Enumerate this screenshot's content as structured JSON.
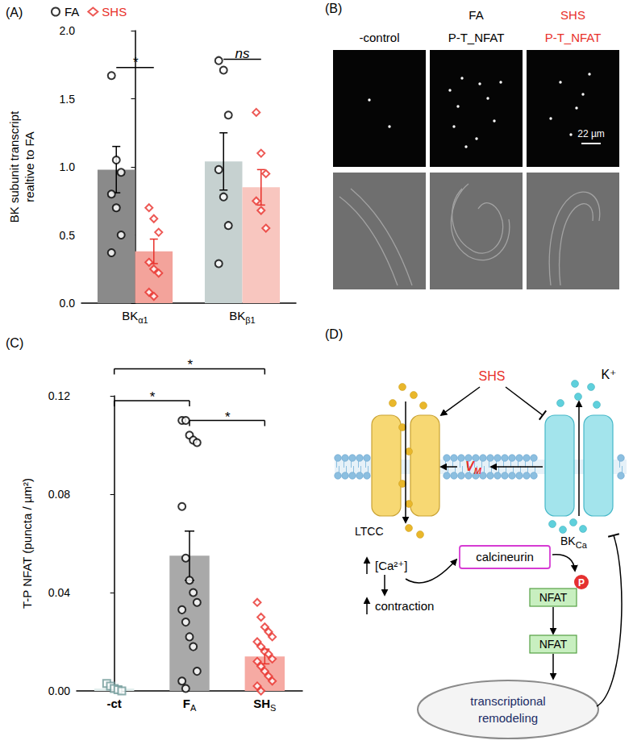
{
  "chart_data": [
    {
      "type": "bar",
      "title": "(A)",
      "y_label": "BK subunit transcript\nrealtive to FA",
      "categories": [
        "BKα1",
        "BKβ1"
      ],
      "series": [
        {
          "name": "FA",
          "color": "#000000",
          "colors": [
            "#8a8a8a",
            "#c6d1d0"
          ],
          "marker": "circle",
          "values": [
            0.98,
            1.04
          ],
          "errors": [
            0.17,
            0.21
          ],
          "points": [
            [
              1.67,
              1.05,
              0.96,
              0.8,
              0.7,
              0.5,
              0.37
            ],
            [
              1.78,
              1.71,
              1.38,
              0.98,
              0.78,
              0.57,
              0.29
            ]
          ]
        },
        {
          "name": "SHS",
          "color": "#e8302a",
          "colors": [
            "#f3a39b",
            "#f8c6bf"
          ],
          "marker": "diamond",
          "values": [
            0.38,
            0.85
          ],
          "errors": [
            0.09,
            0.13
          ],
          "points": [
            [
              0.7,
              0.62,
              0.52,
              0.3,
              0.25,
              0.22,
              0.08,
              0.05
            ],
            [
              1.4,
              1.1,
              0.95,
              0.75,
              0.68,
              0.55
            ]
          ]
        }
      ],
      "ylim": [
        0,
        2
      ],
      "yticks": [
        {
          "value": 0,
          "label": "0.0"
        },
        0.5,
        {
          "value": 1,
          "label": "1.0"
        },
        1.5,
        {
          "value": 2,
          "label": "2.0"
        }
      ],
      "grid": false,
      "legend": "top-left",
      "annotations": [
        {
          "text": "*",
          "category": "BKα1",
          "y": 1.73
        },
        {
          "text": "ns",
          "category": "BKβ1",
          "y": 1.79
        }
      ]
    },
    {
      "type": "bar",
      "title": "(C)",
      "y_label": "T-P NFAT (puncta / µm²)",
      "categories": [
        "-ct",
        "FA",
        "SHS"
      ],
      "series": [
        {
          "color": "#6f9a98",
          "colors": [
            "#e2eeed",
            "#e2eeed",
            "#e2eeed"
          ],
          "marker": "square",
          "values": [
            0.001,
            null,
            null
          ],
          "errors": [
            0.0005,
            null,
            null
          ],
          "points": [
            [
              0.003,
              0.002,
              0.001,
              0.0005,
              0
            ],
            [],
            []
          ]
        },
        {
          "color": "#000000",
          "colors": [
            "#a9a9a9",
            "#a9a9a9",
            "#a9a9a9"
          ],
          "marker": "circle",
          "values": [
            null,
            0.055,
            null
          ],
          "errors": [
            null,
            0.01,
            null
          ],
          "points": [
            [],
            [
              0.11,
              0.11,
              0.104,
              0.102,
              0.101,
              0.075,
              0.054,
              0.045,
              0.04,
              0.036,
              0.033,
              0.028,
              0.022,
              0.018,
              0.008,
              0.004,
              0.001
            ],
            []
          ]
        },
        {
          "color": "#e8302a",
          "colors": [
            "#f6aaa3",
            "#f6aaa3",
            "#f6aaa3"
          ],
          "marker": "diamond",
          "values": [
            null,
            null,
            0.014
          ],
          "errors": [
            null,
            null,
            0.003
          ],
          "points": [
            [],
            [],
            [
              0.036,
              0.03,
              0.026,
              0.024,
              0.022,
              0.02,
              0.018,
              0.016,
              0.015,
              0.013,
              0.012,
              0.01,
              0.008,
              0.006,
              0.004,
              0.002,
              0
            ]
          ]
        }
      ],
      "ylim": [
        0,
        0.12
      ],
      "yticks": [
        {
          "value": 0,
          "label": "0.00"
        },
        {
          "value": 0.04,
          "label": "0.04"
        },
        {
          "value": 0.08,
          "label": "0.08"
        },
        {
          "value": 0.12,
          "label": "0.12"
        }
      ],
      "grid": false,
      "annotations": [
        {
          "text": "*",
          "from": "-ct",
          "to": "SHS",
          "y": 0.131
        },
        {
          "text": "*",
          "from": "-ct",
          "to": "FA",
          "y": 0.118
        },
        {
          "text": "*",
          "from": "FA",
          "to": "SHS",
          "y": 0.11
        }
      ]
    }
  ],
  "panel_B": {
    "label": "(B)",
    "columns": [
      {
        "title": [
          "-control"
        ]
      },
      {
        "title": [
          "FA",
          "P-T_NFAT"
        ]
      },
      {
        "title": [
          "SHS",
          "P-T_NFAT"
        ],
        "color": "#e8302a"
      }
    ],
    "scale_bar": "22 µm"
  },
  "panel_D": {
    "label": "(D)",
    "stimulus": "SHS",
    "ion": "K⁺",
    "channels": [
      {
        "text": "LTCC"
      },
      {
        "text": "BK",
        "sub": "Ca"
      }
    ],
    "potential": {
      "text": "V",
      "sub": "M"
    },
    "calcium": "[Ca²⁺]",
    "response": "contraction",
    "enzyme": "calcineurin",
    "phosphate": "P",
    "factors": [
      "NFAT",
      "NFAT"
    ],
    "nucleus": [
      "transcriptional",
      "remodeling"
    ]
  }
}
